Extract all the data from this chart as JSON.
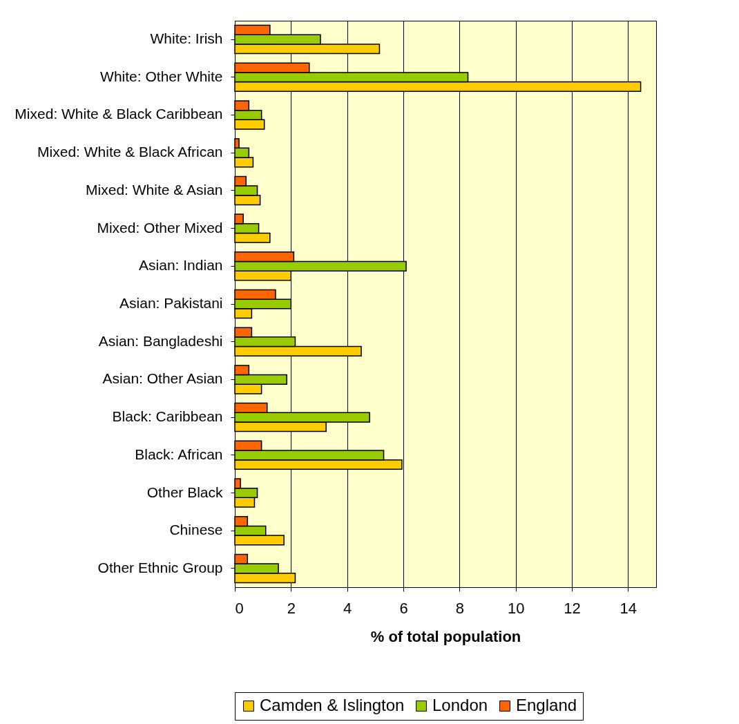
{
  "chart_data": {
    "type": "bar",
    "orientation": "horizontal",
    "xlabel": "% of total population",
    "categories": [
      "White: Irish",
      "White: Other White",
      "Mixed: White & Black Caribbean",
      "Mixed: White & Black African",
      "Mixed: White & Asian",
      "Mixed: Other Mixed",
      "Asian: Indian",
      "Asian: Pakistani",
      "Asian: Bangladeshi",
      "Asian: Other Asian",
      "Black: Caribbean",
      "Black: African",
      "Other Black",
      "Chinese",
      "Other Ethnic Group"
    ],
    "series": [
      {
        "name": "Camden & Islington",
        "color": "#ffcc00",
        "values": [
          5.15,
          14.45,
          1.05,
          0.65,
          0.9,
          1.25,
          2.0,
          0.6,
          4.5,
          0.95,
          3.25,
          5.95,
          0.7,
          1.75,
          2.15
        ]
      },
      {
        "name": "London",
        "color": "#99cc00",
        "values": [
          3.05,
          8.3,
          0.95,
          0.5,
          0.8,
          0.85,
          6.1,
          2.0,
          2.15,
          1.85,
          4.8,
          5.3,
          0.8,
          1.1,
          1.55
        ]
      },
      {
        "name": "England",
        "color": "#ff6600",
        "values": [
          1.25,
          2.65,
          0.5,
          0.15,
          0.4,
          0.3,
          2.1,
          1.45,
          0.6,
          0.5,
          1.15,
          0.95,
          0.2,
          0.45,
          0.45
        ]
      }
    ],
    "xlim": [
      0,
      15
    ],
    "xticks": [
      0,
      2,
      4,
      6,
      8,
      10,
      12,
      14
    ],
    "grid": "x",
    "legend": "bottom"
  }
}
